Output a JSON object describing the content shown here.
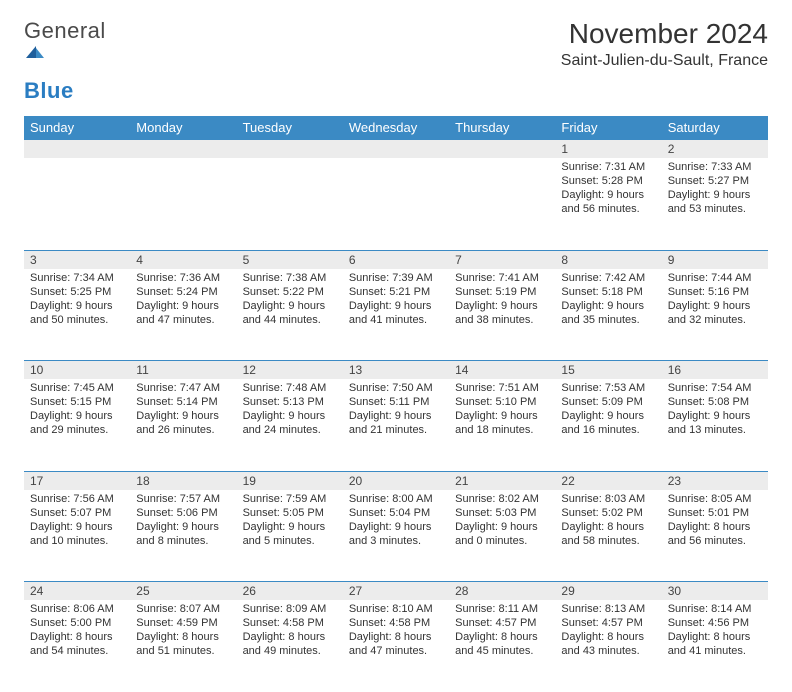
{
  "brand": {
    "name_a": "General",
    "name_b": "Blue"
  },
  "title": "November 2024",
  "location": "Saint-Julien-du-Sault, France",
  "colors": {
    "header_bg": "#3b8ac4",
    "header_fg": "#ffffff",
    "daynum_bg": "#ececec",
    "border": "#3b8ac4",
    "text": "#333333",
    "logo_blue": "#2a7dc2"
  },
  "weekdays": [
    "Sunday",
    "Monday",
    "Tuesday",
    "Wednesday",
    "Thursday",
    "Friday",
    "Saturday"
  ],
  "days": {
    "1": {
      "sunrise": "7:31 AM",
      "sunset": "5:28 PM",
      "daylight": "9 hours and 56 minutes."
    },
    "2": {
      "sunrise": "7:33 AM",
      "sunset": "5:27 PM",
      "daylight": "9 hours and 53 minutes."
    },
    "3": {
      "sunrise": "7:34 AM",
      "sunset": "5:25 PM",
      "daylight": "9 hours and 50 minutes."
    },
    "4": {
      "sunrise": "7:36 AM",
      "sunset": "5:24 PM",
      "daylight": "9 hours and 47 minutes."
    },
    "5": {
      "sunrise": "7:38 AM",
      "sunset": "5:22 PM",
      "daylight": "9 hours and 44 minutes."
    },
    "6": {
      "sunrise": "7:39 AM",
      "sunset": "5:21 PM",
      "daylight": "9 hours and 41 minutes."
    },
    "7": {
      "sunrise": "7:41 AM",
      "sunset": "5:19 PM",
      "daylight": "9 hours and 38 minutes."
    },
    "8": {
      "sunrise": "7:42 AM",
      "sunset": "5:18 PM",
      "daylight": "9 hours and 35 minutes."
    },
    "9": {
      "sunrise": "7:44 AM",
      "sunset": "5:16 PM",
      "daylight": "9 hours and 32 minutes."
    },
    "10": {
      "sunrise": "7:45 AM",
      "sunset": "5:15 PM",
      "daylight": "9 hours and 29 minutes."
    },
    "11": {
      "sunrise": "7:47 AM",
      "sunset": "5:14 PM",
      "daylight": "9 hours and 26 minutes."
    },
    "12": {
      "sunrise": "7:48 AM",
      "sunset": "5:13 PM",
      "daylight": "9 hours and 24 minutes."
    },
    "13": {
      "sunrise": "7:50 AM",
      "sunset": "5:11 PM",
      "daylight": "9 hours and 21 minutes."
    },
    "14": {
      "sunrise": "7:51 AM",
      "sunset": "5:10 PM",
      "daylight": "9 hours and 18 minutes."
    },
    "15": {
      "sunrise": "7:53 AM",
      "sunset": "5:09 PM",
      "daylight": "9 hours and 16 minutes."
    },
    "16": {
      "sunrise": "7:54 AM",
      "sunset": "5:08 PM",
      "daylight": "9 hours and 13 minutes."
    },
    "17": {
      "sunrise": "7:56 AM",
      "sunset": "5:07 PM",
      "daylight": "9 hours and 10 minutes."
    },
    "18": {
      "sunrise": "7:57 AM",
      "sunset": "5:06 PM",
      "daylight": "9 hours and 8 minutes."
    },
    "19": {
      "sunrise": "7:59 AM",
      "sunset": "5:05 PM",
      "daylight": "9 hours and 5 minutes."
    },
    "20": {
      "sunrise": "8:00 AM",
      "sunset": "5:04 PM",
      "daylight": "9 hours and 3 minutes."
    },
    "21": {
      "sunrise": "8:02 AM",
      "sunset": "5:03 PM",
      "daylight": "9 hours and 0 minutes."
    },
    "22": {
      "sunrise": "8:03 AM",
      "sunset": "5:02 PM",
      "daylight": "8 hours and 58 minutes."
    },
    "23": {
      "sunrise": "8:05 AM",
      "sunset": "5:01 PM",
      "daylight": "8 hours and 56 minutes."
    },
    "24": {
      "sunrise": "8:06 AM",
      "sunset": "5:00 PM",
      "daylight": "8 hours and 54 minutes."
    },
    "25": {
      "sunrise": "8:07 AM",
      "sunset": "4:59 PM",
      "daylight": "8 hours and 51 minutes."
    },
    "26": {
      "sunrise": "8:09 AM",
      "sunset": "4:58 PM",
      "daylight": "8 hours and 49 minutes."
    },
    "27": {
      "sunrise": "8:10 AM",
      "sunset": "4:58 PM",
      "daylight": "8 hours and 47 minutes."
    },
    "28": {
      "sunrise": "8:11 AM",
      "sunset": "4:57 PM",
      "daylight": "8 hours and 45 minutes."
    },
    "29": {
      "sunrise": "8:13 AM",
      "sunset": "4:57 PM",
      "daylight": "8 hours and 43 minutes."
    },
    "30": {
      "sunrise": "8:14 AM",
      "sunset": "4:56 PM",
      "daylight": "8 hours and 41 minutes."
    }
  },
  "labels": {
    "sunrise": "Sunrise:",
    "sunset": "Sunset:",
    "daylight": "Daylight:"
  },
  "layout": {
    "first_weekday_index": 5,
    "days_in_month": 30,
    "columns": 7
  }
}
